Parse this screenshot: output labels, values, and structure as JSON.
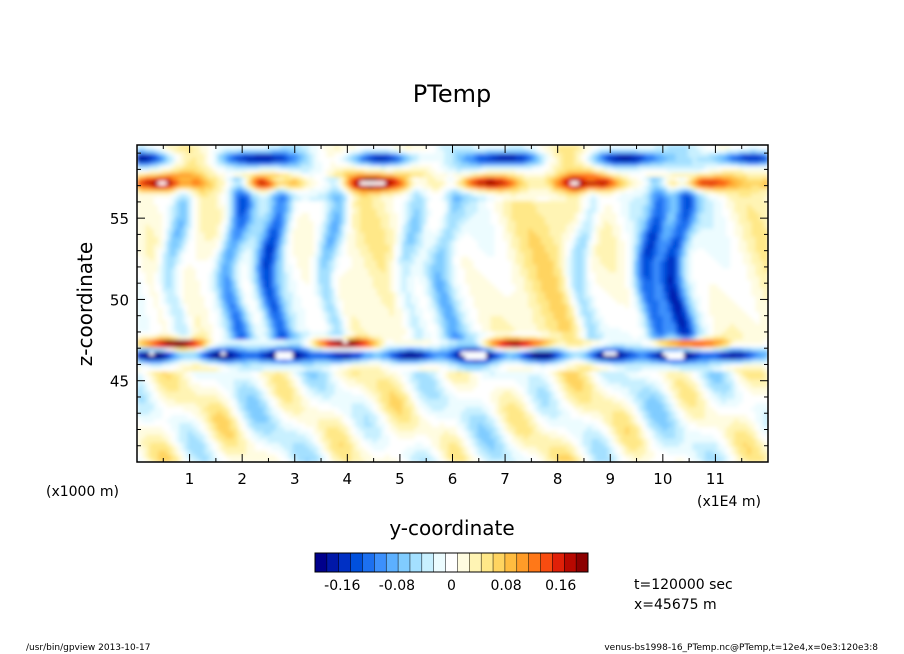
{
  "chart_data": {
    "type": "heatmap",
    "title": "PTemp",
    "xlabel": "y-coordinate",
    "ylabel": "z-coordinate",
    "x_unit": "(x1E4 m)",
    "y_unit": "(x1000 m)",
    "xlim": [
      0,
      12
    ],
    "ylim": [
      40,
      59.5
    ],
    "x_ticks": [
      "1",
      "2",
      "3",
      "4",
      "5",
      "6",
      "7",
      "8",
      "9",
      "10",
      "11"
    ],
    "y_ticks": [
      "45",
      "50",
      "55"
    ],
    "colorbar": {
      "range": [
        -0.2,
        0.2
      ],
      "tick_labels": [
        "-0.16",
        "-0.08",
        "0",
        "0.08",
        "0.16"
      ],
      "tick_values": [
        -0.16,
        -0.08,
        0,
        0.08,
        0.16
      ],
      "colors": [
        "#00008c",
        "#0018a8",
        "#0030c4",
        "#0050dc",
        "#1c70f0",
        "#3c90fc",
        "#5cb0ff",
        "#80ccff",
        "#a4e0ff",
        "#c8f0ff",
        "#ecfcff",
        "#ffffff",
        "#fffce0",
        "#fff4b4",
        "#ffe888",
        "#ffd460",
        "#ffbc40",
        "#ff9c28",
        "#ff7818",
        "#f84c10",
        "#e02008",
        "#b80800",
        "#8c0000"
      ]
    },
    "annotations": {
      "time": "t=120000 sec",
      "position": "x=45675 m"
    },
    "bands": [
      {
        "z_center": 47.2,
        "value": -0.2,
        "description": "cold band"
      },
      {
        "z_center": 57.2,
        "value": 0.18,
        "description": "warm band"
      }
    ]
  },
  "footer": {
    "left": "/usr/bin/gpview   2013-10-17",
    "right": "venus-bs1998-16_PTemp.nc@PTemp,t=12e4,x=0e3:120e3:8"
  }
}
